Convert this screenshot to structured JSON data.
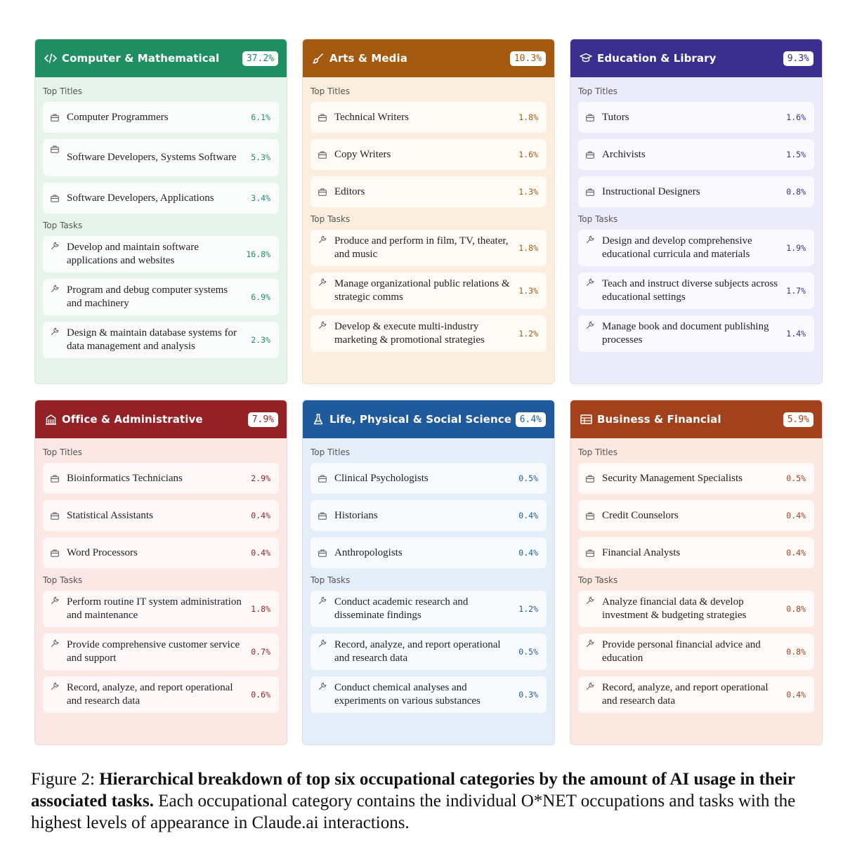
{
  "labels": {
    "titles": "Top Titles",
    "tasks": "Top Tasks"
  },
  "cards": [
    {
      "name": "Computer & Mathematical",
      "pct": "37.2%",
      "theme": "green",
      "icon": "code-icon",
      "titles": [
        {
          "label": "Computer Programmers",
          "pct": "6.1%"
        },
        {
          "label": "Software Developers, Systems Software",
          "pct": "5.3%"
        },
        {
          "label": "Software Developers, Applications",
          "pct": "3.4%"
        }
      ],
      "tasks": [
        {
          "label": "Develop and maintain software applications and websites",
          "pct": "16.8%"
        },
        {
          "label": "Program and debug computer systems and machinery",
          "pct": "6.9%"
        },
        {
          "label": "Design & maintain database systems for data management and analysis",
          "pct": "2.3%"
        }
      ]
    },
    {
      "name": "Arts & Media",
      "pct": "10.3%",
      "theme": "orange",
      "icon": "brush-icon",
      "titles": [
        {
          "label": "Technical Writers",
          "pct": "1.8%"
        },
        {
          "label": "Copy Writers",
          "pct": "1.6%"
        },
        {
          "label": "Editors",
          "pct": "1.3%"
        }
      ],
      "tasks": [
        {
          "label": "Produce and perform in film, TV, theater, and music",
          "pct": "1.8%"
        },
        {
          "label": "Manage organizational public relations & strategic comms",
          "pct": "1.3%"
        },
        {
          "label": "Develop & execute multi-industry marketing & promotional strategies",
          "pct": "1.2%"
        }
      ]
    },
    {
      "name": "Education & Library",
      "pct": "9.3%",
      "theme": "purple",
      "icon": "graduation-cap-icon",
      "titles": [
        {
          "label": "Tutors",
          "pct": "1.6%"
        },
        {
          "label": "Archivists",
          "pct": "1.5%"
        },
        {
          "label": "Instructional Designers",
          "pct": "0.8%"
        }
      ],
      "tasks": [
        {
          "label": "Design and develop comprehensive educational curricula and materials",
          "pct": "1.9%"
        },
        {
          "label": "Teach and instruct diverse subjects across educational settings",
          "pct": "1.7%"
        },
        {
          "label": "Manage book and document publishing processes",
          "pct": "1.4%"
        }
      ]
    },
    {
      "name": "Office & Administrative",
      "pct": "7.9%",
      "theme": "red",
      "icon": "building-icon",
      "titles": [
        {
          "label": "Bioinformatics Technicians",
          "pct": "2.9%"
        },
        {
          "label": "Statistical Assistants",
          "pct": "0.4%"
        },
        {
          "label": "Word Processors",
          "pct": "0.4%"
        }
      ],
      "tasks": [
        {
          "label": "Perform routine IT system administration and maintenance",
          "pct": "1.8%"
        },
        {
          "label": "Provide comprehensive customer service and support",
          "pct": "0.7%"
        },
        {
          "label": "Record, analyze, and report operational and research data",
          "pct": "0.6%"
        }
      ]
    },
    {
      "name": "Life, Physical & Social Science",
      "pct": "6.4%",
      "theme": "blue",
      "icon": "flask-icon",
      "titles": [
        {
          "label": "Clinical Psychologists",
          "pct": "0.5%"
        },
        {
          "label": "Historians",
          "pct": "0.4%"
        },
        {
          "label": "Anthropologists",
          "pct": "0.4%"
        }
      ],
      "tasks": [
        {
          "label": "Conduct academic research and disseminate findings",
          "pct": "1.2%"
        },
        {
          "label": "Record, analyze, and report operational and research data",
          "pct": "0.5%"
        },
        {
          "label": "Conduct chemical analyses and experiments on various substances",
          "pct": "0.3%"
        }
      ]
    },
    {
      "name": "Business & Financial",
      "pct": "5.9%",
      "theme": "rust",
      "icon": "ledger-icon",
      "titles": [
        {
          "label": "Security Management Specialists",
          "pct": "0.5%"
        },
        {
          "label": "Credit Counselors",
          "pct": "0.4%"
        },
        {
          "label": "Financial Analysts",
          "pct": "0.4%"
        }
      ],
      "tasks": [
        {
          "label": "Analyze financial data & develop investment & budgeting strategies",
          "pct": "0.8%"
        },
        {
          "label": "Provide personal financial advice and education",
          "pct": "0.8%"
        },
        {
          "label": "Record, analyze, and report operational and research data",
          "pct": "0.4%"
        }
      ]
    }
  ],
  "caption": {
    "prefix": "Figure 2: ",
    "bold": "Hierarchical breakdown of top six occupational categories by the amount of AI usage in their associated tasks.",
    "rest": " Each occupational category contains the individual O*NET occupations and tasks with the highest levels of appearance in Claude.ai interactions."
  }
}
